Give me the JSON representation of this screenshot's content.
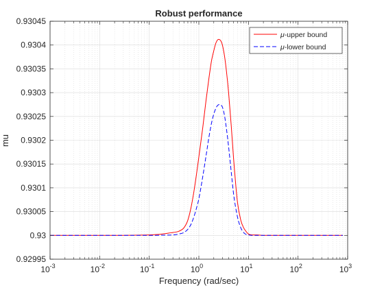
{
  "chart_data": {
    "type": "line",
    "title": "Robust performance",
    "xlabel": "Frequency (rad/sec)",
    "ylabel": "mu",
    "xscale": "log",
    "xlim": [
      0.001,
      1000
    ],
    "ylim": [
      0.92995,
      0.93045
    ],
    "grid": true,
    "minor_grid": true,
    "legend_placement": "top-right",
    "x_ticks": [
      0.001,
      0.01,
      0.1,
      1,
      10,
      100,
      1000
    ],
    "x_tick_labels": [
      {
        "base": "10",
        "exp": "-3"
      },
      {
        "base": "10",
        "exp": "-2"
      },
      {
        "base": "10",
        "exp": "-1"
      },
      {
        "base": "10",
        "exp": "0"
      },
      {
        "base": "10",
        "exp": "1"
      },
      {
        "base": "10",
        "exp": "2"
      },
      {
        "base": "10",
        "exp": "3"
      }
    ],
    "y_ticks": [
      0.92995,
      0.93,
      0.93005,
      0.9301,
      0.93015,
      0.9302,
      0.93025,
      0.9303,
      0.93035,
      0.9304,
      0.93045
    ],
    "y_tick_labels": [
      "0.92995",
      "0.93",
      "0.93005",
      "0.9301",
      "0.93015",
      "0.9302",
      "0.93025",
      "0.9303",
      "0.93035",
      "0.9304",
      "0.93045"
    ],
    "series": [
      {
        "name": "μ-upper bound",
        "legend_symbol": "μ",
        "legend_text": "-upper bound",
        "color": "#ff0000",
        "style": "solid",
        "x": [
          0.001,
          0.01,
          0.1,
          0.15,
          0.2,
          0.25,
          0.3,
          0.4,
          0.5,
          0.6,
          0.7,
          0.8,
          0.9,
          1.0,
          1.2,
          1.4,
          1.6,
          1.8,
          2.0,
          2.2,
          2.5,
          2.8,
          3.0,
          3.3,
          3.6,
          4.0,
          4.5,
          5.0,
          6.0,
          7.0,
          8.0,
          9.0,
          10.0,
          12.0,
          15.0,
          20.0,
          30.0,
          100.0,
          800.0
        ],
        "y": [
          0.93,
          0.93,
          0.930001,
          0.930002,
          0.9300035,
          0.930005,
          0.930006,
          0.930009,
          0.930016,
          0.930032,
          0.93006,
          0.930094,
          0.93013,
          0.930165,
          0.930227,
          0.930285,
          0.930331,
          0.930367,
          0.930388,
          0.930404,
          0.930412,
          0.930408,
          0.930399,
          0.930376,
          0.930345,
          0.930297,
          0.93023,
          0.930163,
          0.93007,
          0.930032,
          0.930016,
          0.930008,
          0.930003,
          0.930001,
          0.930001,
          0.93,
          0.93,
          0.93,
          0.93
        ]
      },
      {
        "name": "μ-lower bound",
        "legend_symbol": "μ",
        "legend_text": "-lower bound",
        "color": "#0000ff",
        "style": "dashed",
        "x": [
          0.001,
          0.01,
          0.1,
          0.2,
          0.3,
          0.4,
          0.5,
          0.6,
          0.7,
          0.8,
          0.9,
          1.0,
          1.2,
          1.4,
          1.6,
          1.8,
          2.0,
          2.3,
          2.6,
          2.8,
          3.0,
          3.3,
          3.6,
          4.0,
          4.5,
          5.0,
          6.0,
          7.0,
          8.0,
          9.0,
          10.0,
          12.0,
          15.0,
          20.0,
          100.0,
          800.0
        ],
        "y": [
          0.93,
          0.93,
          0.93,
          0.9300005,
          0.930001,
          0.930003,
          0.930006,
          0.930013,
          0.930024,
          0.93004,
          0.930058,
          0.930077,
          0.930124,
          0.930168,
          0.930207,
          0.930236,
          0.930255,
          0.930271,
          0.930275,
          0.930274,
          0.930269,
          0.930251,
          0.930224,
          0.930184,
          0.930133,
          0.930088,
          0.930039,
          0.930016,
          0.930006,
          0.930002,
          0.930001,
          0.93,
          0.93,
          0.93,
          0.93,
          0.93
        ]
      }
    ]
  }
}
